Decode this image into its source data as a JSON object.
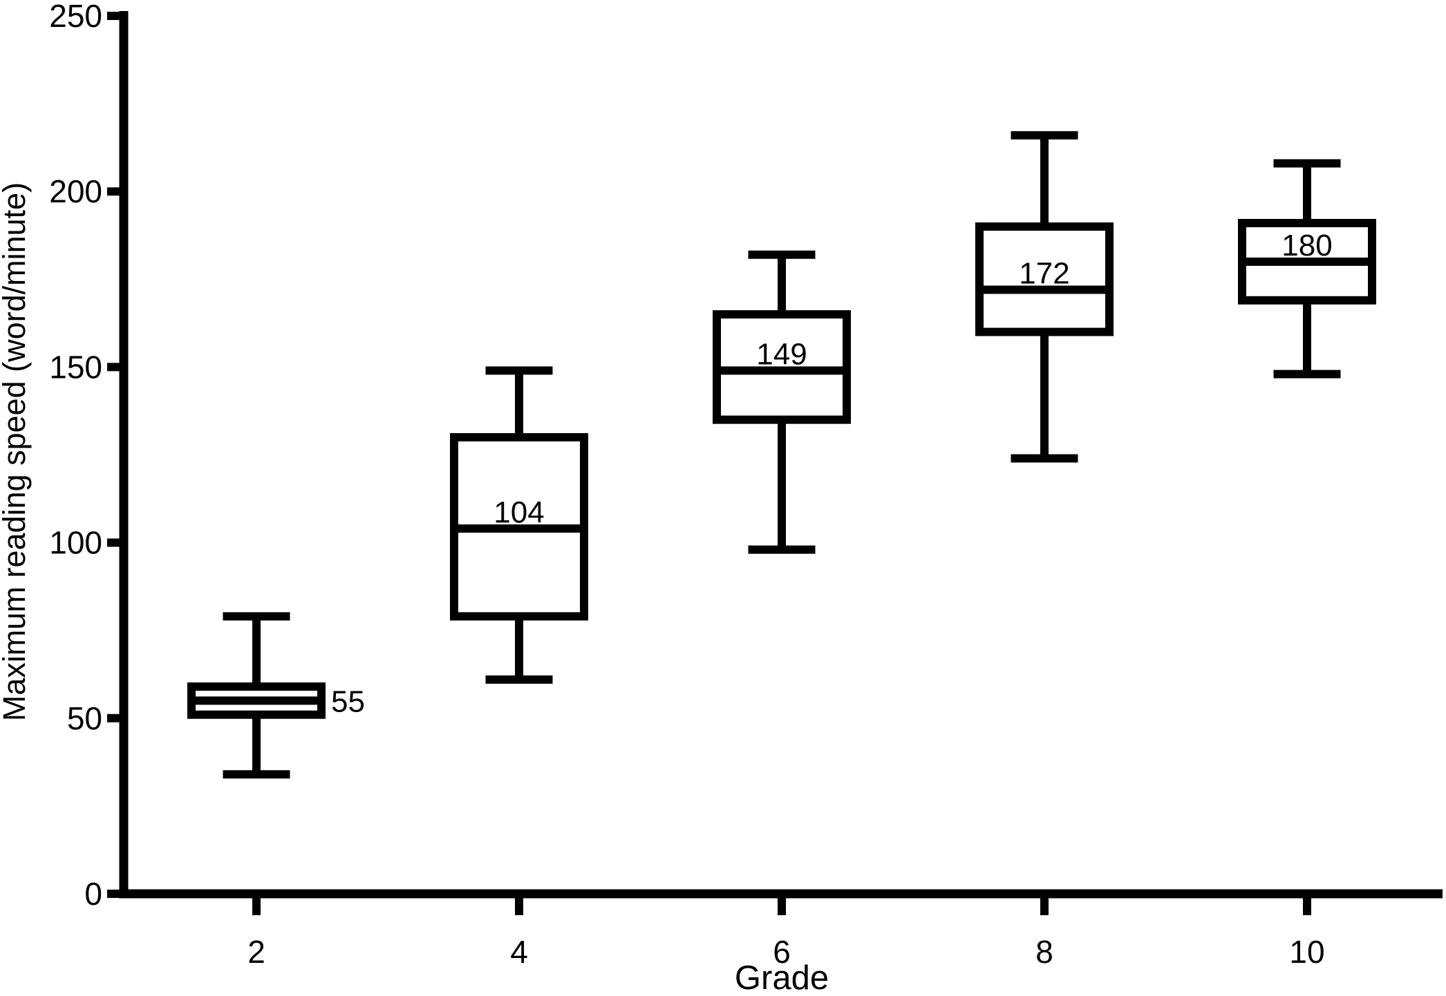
{
  "background_color": "#ffffff",
  "foreground_color": "#000000",
  "chart_data": {
    "type": "box",
    "title": "",
    "xlabel": "Grade",
    "ylabel": "Maximum reading speed (word/minute)",
    "categories": [
      "2",
      "4",
      "6",
      "8",
      "10"
    ],
    "ylim": [
      0,
      250
    ],
    "yticks": [
      0,
      50,
      100,
      150,
      200,
      250
    ],
    "grid": false,
    "legend_position": "none",
    "box_stroke_color": "#000000",
    "box_fill_color": "#ffffff",
    "boxes": [
      {
        "category": "2",
        "min": 34,
        "q1": 51,
        "median": 55,
        "q3": 59,
        "max": 79,
        "median_label": "55",
        "median_label_position": "right-of-box"
      },
      {
        "category": "4",
        "min": 61,
        "q1": 79,
        "median": 104,
        "q3": 130,
        "max": 149,
        "median_label": "104",
        "median_label_position": "inside-above-median"
      },
      {
        "category": "6",
        "min": 98,
        "q1": 135,
        "median": 149,
        "q3": 165,
        "max": 182,
        "median_label": "149",
        "median_label_position": "inside-above-median"
      },
      {
        "category": "8",
        "min": 124,
        "q1": 160,
        "median": 172,
        "q3": 190,
        "max": 216,
        "median_label": "172",
        "median_label_position": "inside-above-median"
      },
      {
        "category": "10",
        "min": 148,
        "q1": 169,
        "median": 180,
        "q3": 191,
        "max": 208,
        "median_label": "180",
        "median_label_position": "inside-above-median"
      }
    ]
  }
}
